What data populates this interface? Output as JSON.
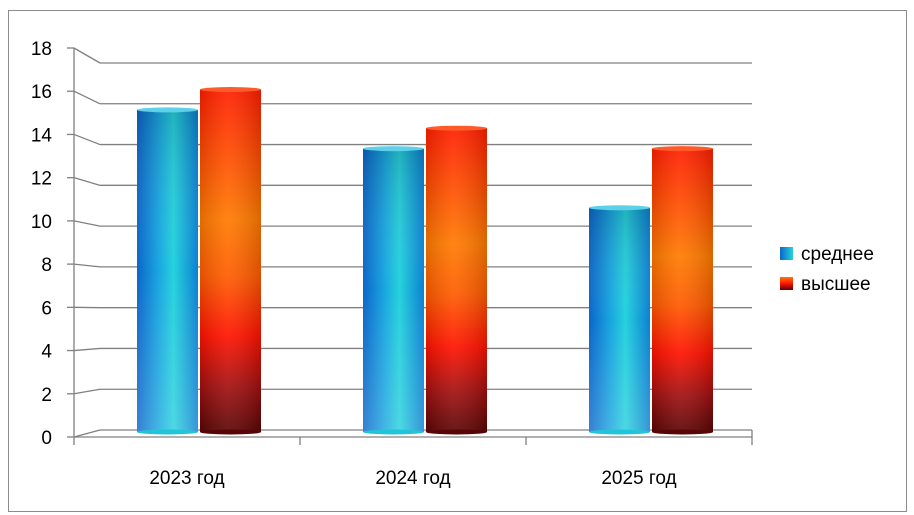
{
  "chart_data": {
    "type": "bar",
    "title": "",
    "xlabel": "",
    "ylabel": "",
    "categories": [
      "2023 год",
      "2024 год",
      "2025 год"
    ],
    "series": [
      {
        "name": "среднее",
        "values": [
          15.7,
          13.8,
          10.9
        ],
        "color_dark": "#0a6fc8",
        "color_light": "#28d6d6"
      },
      {
        "name": "высшее",
        "values": [
          16.7,
          14.8,
          13.8
        ],
        "color_dark": "#5a0808",
        "color_light": "#ff2a00"
      }
    ],
    "ylim": [
      0,
      18
    ],
    "yticks": [
      "0",
      "2",
      "4",
      "6",
      "8",
      "10",
      "12",
      "14",
      "16",
      "18"
    ],
    "grid": true,
    "legend_position": "right"
  }
}
